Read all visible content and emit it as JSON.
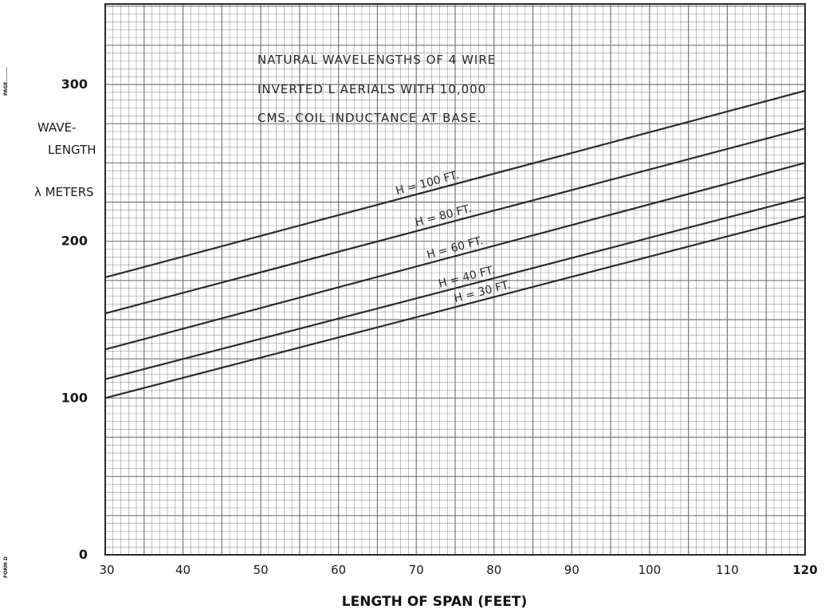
{
  "chart_data": {
    "type": "line",
    "title_lines": [
      "NATURAL WAVELENGTHS OF 4 WIRE",
      "INVERTED L AERIALS WITH 10,000",
      "CMS. COIL INDUCTANCE AT BASE."
    ],
    "ylabel_lines": [
      "WAVE-",
      "LENGTH",
      "λ METERS"
    ],
    "xlabel": "LENGTH OF SPAN (FEET)",
    "xlim": [
      30,
      120
    ],
    "ylim": [
      0,
      300
    ],
    "x_ticks": [
      30,
      40,
      50,
      60,
      70,
      80,
      90,
      100,
      110,
      120
    ],
    "x_tick_labels": [
      "30",
      "40",
      "50",
      "60",
      "70",
      "80",
      "90",
      "100",
      "110",
      "120"
    ],
    "y_ticks": [
      0,
      100,
      200,
      300
    ],
    "y_tick_labels": [
      "0",
      "100",
      "200",
      "300"
    ],
    "grid": true,
    "series": [
      {
        "name": "H = 100 FT.",
        "x": [
          30,
          120
        ],
        "values": [
          177,
          296
        ]
      },
      {
        "name": "H = 80 FT.",
        "x": [
          30,
          120
        ],
        "values": [
          154,
          272
        ]
      },
      {
        "name": "H = 60 FT.",
        "x": [
          30,
          120
        ],
        "values": [
          131,
          250
        ]
      },
      {
        "name": "H = 40 FT.",
        "x": [
          30,
          120
        ],
        "values": [
          112,
          228
        ]
      },
      {
        "name": "H = 30 FT.",
        "x": [
          30,
          120
        ],
        "values": [
          100,
          216
        ]
      }
    ]
  },
  "margin_text": {
    "top": "PAGE........",
    "bottom": "FORM D"
  },
  "colors": {
    "grid": "#6a6a6a",
    "line": "#2b2b2b",
    "text": "#1a1a1a"
  }
}
